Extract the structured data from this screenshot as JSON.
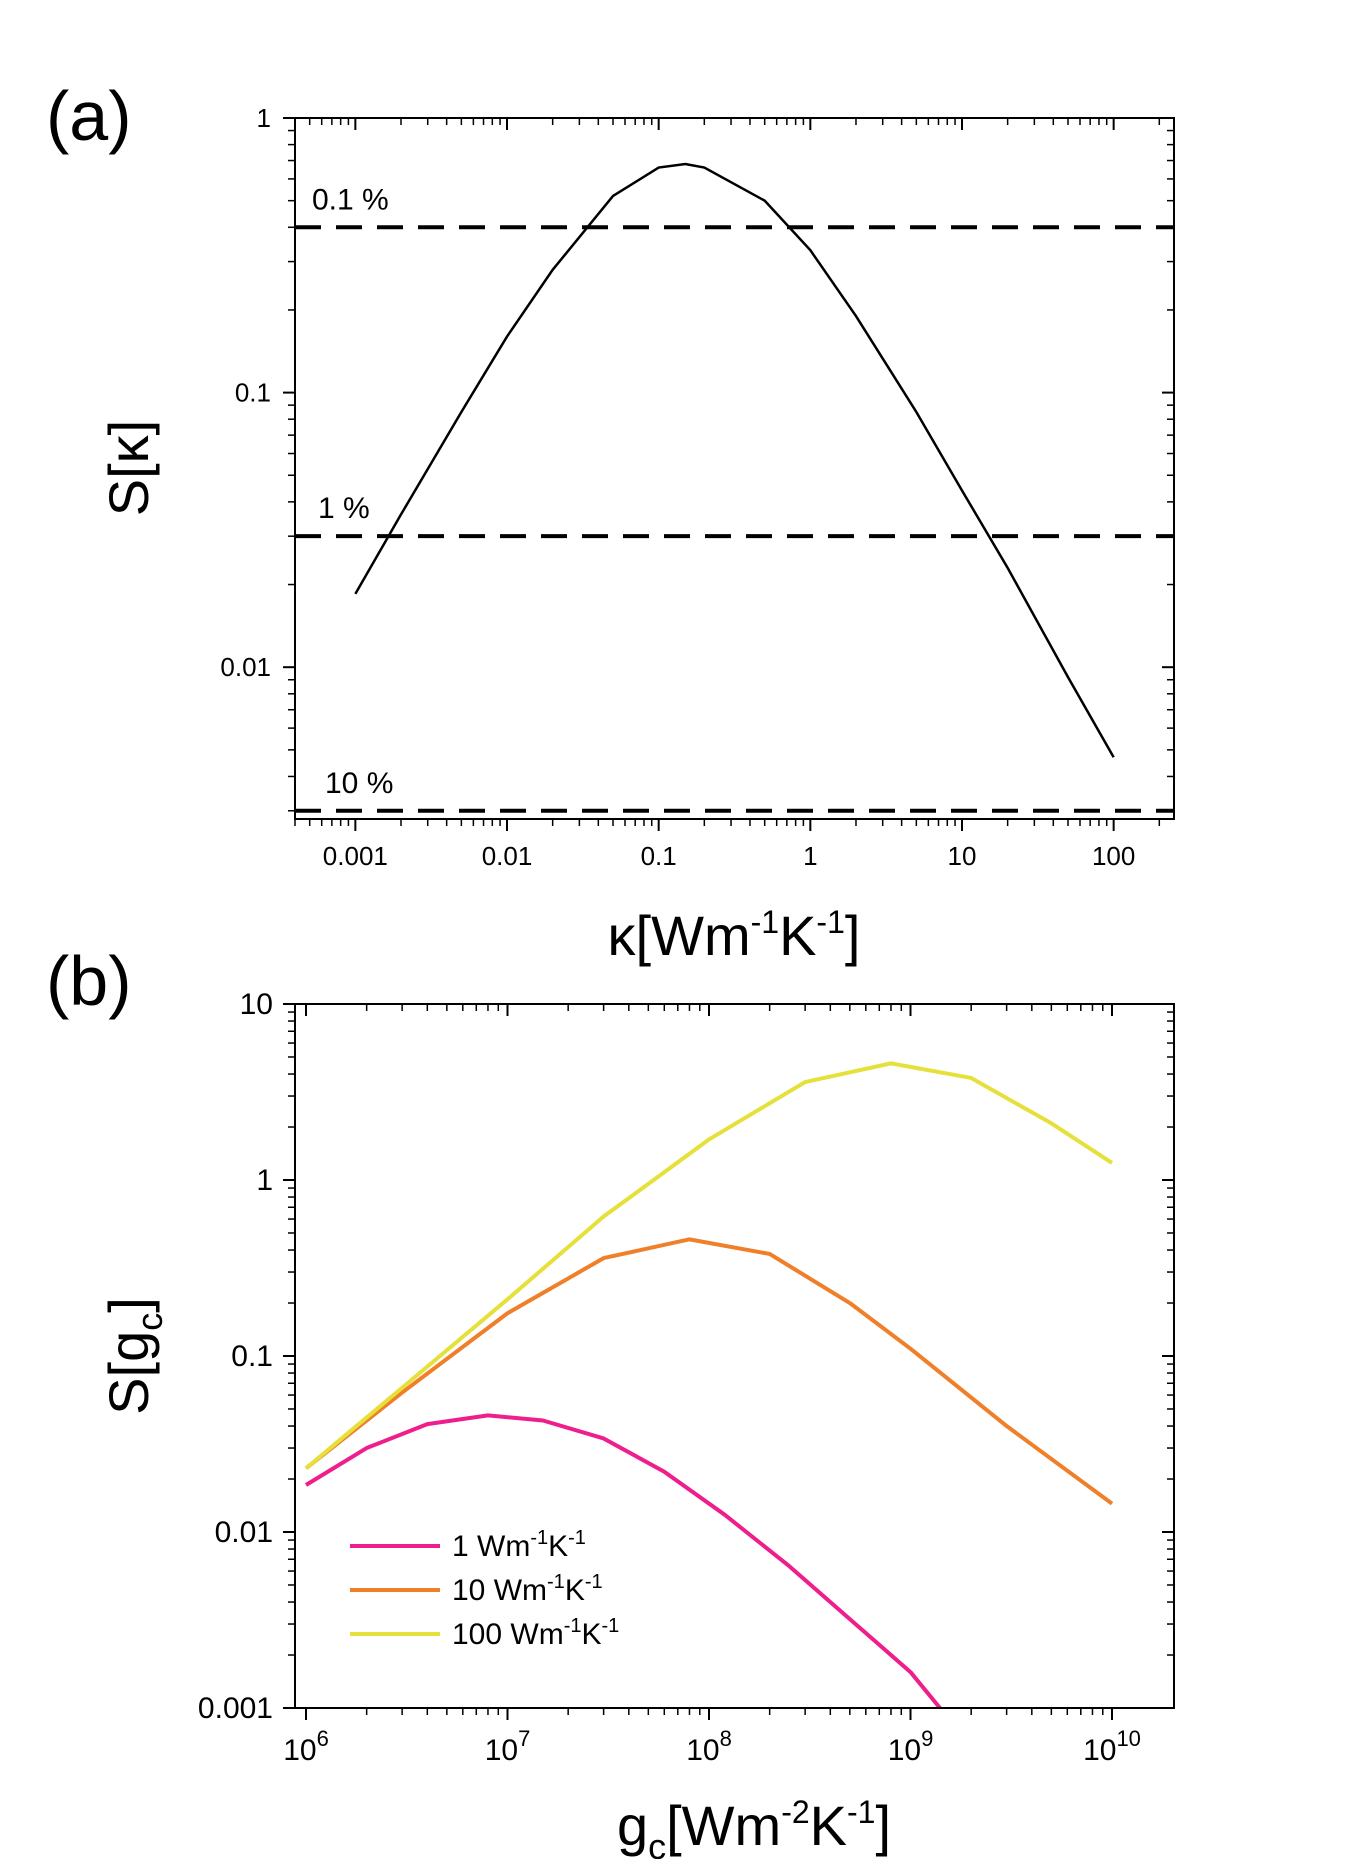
{
  "chart_data": [
    {
      "panel": "(a)",
      "type": "line",
      "xscale": "log",
      "yscale": "log",
      "xlim": [
        0.0004,
        250
      ],
      "ylim": [
        0.0028,
        1
      ],
      "xticks": [
        0.001,
        0.01,
        0.1,
        1,
        10,
        100
      ],
      "xtick_labels": [
        "0.001",
        "0.01",
        "0.1",
        "1",
        "10",
        "100"
      ],
      "yticks": [
        0.01,
        0.1,
        1
      ],
      "ytick_labels": [
        "0.01",
        "0.1",
        "1"
      ],
      "xlabel": {
        "base": "κ[Wm",
        "e1": "-1",
        "mid": "K",
        "e2": "-1",
        "end": "]"
      },
      "ylabel": "S[κ]",
      "series": [
        {
          "name": "S[κ]",
          "color": "#000000",
          "x": [
            0.001,
            0.002,
            0.005,
            0.01,
            0.02,
            0.05,
            0.1,
            0.15,
            0.2,
            0.5,
            1,
            2,
            5,
            10,
            20,
            50,
            100
          ],
          "y": [
            0.0185,
            0.036,
            0.085,
            0.16,
            0.28,
            0.52,
            0.66,
            0.68,
            0.66,
            0.5,
            0.33,
            0.19,
            0.085,
            0.044,
            0.023,
            0.0092,
            0.0047
          ]
        }
      ],
      "reference_lines": [
        {
          "label": "0.1 %",
          "y": 0.4
        },
        {
          "label": "1 %",
          "y": 0.03
        },
        {
          "label": "10 %",
          "y": 0.003
        }
      ]
    },
    {
      "panel": "(b)",
      "type": "line",
      "xscale": "log",
      "yscale": "log",
      "xlim": [
        1000000.0,
        10000000000.0
      ],
      "ylim": [
        0.001,
        10
      ],
      "xticks": [
        1000000.0,
        10000000.0,
        100000000.0,
        1000000000.0,
        10000000000.0
      ],
      "xtick_labels": [
        {
          "base": "10",
          "exp": "6"
        },
        {
          "base": "10",
          "exp": "7"
        },
        {
          "base": "10",
          "exp": "8"
        },
        {
          "base": "10",
          "exp": "9"
        },
        {
          "base": "10",
          "exp": "10"
        }
      ],
      "yticks": [
        0.001,
        0.01,
        0.1,
        1,
        10
      ],
      "ytick_labels": [
        "0.001",
        "0.01",
        "0.1",
        "1",
        "10"
      ],
      "xlabel": {
        "base": "g",
        "sub": "c",
        "mid": "[Wm",
        "e1": "-2",
        "mid2": "K",
        "e2": "-1",
        "end": "]"
      },
      "ylabel": {
        "base": "S[g",
        "sub": "c",
        "end": "]"
      },
      "legend_position": "lower-left",
      "series": [
        {
          "name": "1 Wm⁻¹K⁻¹",
          "legend": {
            "value": "1 Wm",
            "e1": "-1",
            "mid": "K",
            "e2": "-1"
          },
          "color": "#ee1e8c",
          "x": [
            1000000.0,
            2000000.0,
            4000000.0,
            8000000.0,
            15000000.0,
            30000000.0,
            60000000.0,
            120000000.0,
            250000000.0,
            500000000.0,
            1000000000.0,
            1400000000.0
          ],
          "y": [
            0.0185,
            0.03,
            0.041,
            0.046,
            0.043,
            0.034,
            0.022,
            0.0125,
            0.0064,
            0.0032,
            0.0016,
            0.001
          ]
        },
        {
          "name": "10 Wm⁻¹K⁻¹",
          "legend": {
            "value": "10 Wm",
            "e1": "-1",
            "mid": "K",
            "e2": "-1"
          },
          "color": "#f07f2a",
          "x": [
            1000000.0,
            3000000.0,
            10000000.0,
            30000000.0,
            80000000.0,
            200000000.0,
            500000000.0,
            1000000000.0,
            3000000000.0,
            10000000000.0
          ],
          "y": [
            0.023,
            0.062,
            0.175,
            0.36,
            0.46,
            0.38,
            0.2,
            0.11,
            0.04,
            0.0145
          ]
        },
        {
          "name": "100 Wm⁻¹K⁻¹",
          "legend": {
            "value": "100 Wm",
            "e1": "-1",
            "mid": "K",
            "e2": "-1"
          },
          "color": "#e6e03a",
          "x": [
            1000000.0,
            3000000.0,
            10000000.0,
            30000000.0,
            100000000.0,
            300000000.0,
            800000000.0,
            2000000000.0,
            5000000000.0,
            10000000000.0
          ],
          "y": [
            0.023,
            0.066,
            0.21,
            0.62,
            1.7,
            3.6,
            4.6,
            3.8,
            2.1,
            1.25
          ]
        }
      ]
    }
  ]
}
